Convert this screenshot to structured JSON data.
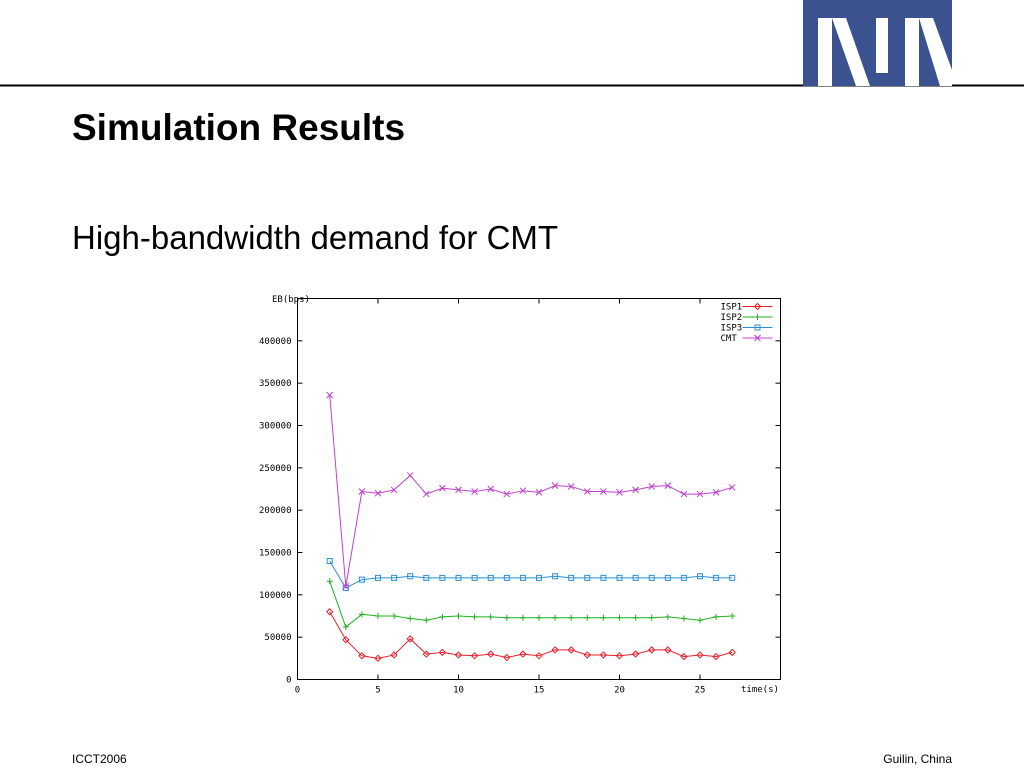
{
  "slide": {
    "title": "Simulation Results",
    "subtitle": "High-bandwidth demand for CMT",
    "footer_left": "ICCT2006",
    "footer_right": "Guilin, China"
  },
  "chart_data": {
    "type": "line",
    "x_label": "time(s)",
    "y_label": "EB(bps)",
    "x": [
      2,
      3,
      4,
      5,
      6,
      7,
      8,
      9,
      10,
      11,
      12,
      13,
      14,
      15,
      16,
      17,
      18,
      19,
      20,
      21,
      22,
      23,
      24,
      25,
      26,
      27
    ],
    "xlim": [
      0,
      30
    ],
    "xticks": [
      0,
      5,
      10,
      15,
      20,
      25
    ],
    "ylim": [
      0,
      450000
    ],
    "yticks": [
      0,
      50000,
      100000,
      150000,
      200000,
      250000,
      300000,
      350000,
      400000
    ],
    "grid": false,
    "legend": "top-right",
    "series": [
      {
        "name": "ISP1",
        "color": "#e8202a",
        "marker": "diamond",
        "values": [
          80000,
          47000,
          28000,
          25000,
          29000,
          48000,
          30000,
          32000,
          29000,
          28000,
          30000,
          26000,
          30000,
          28000,
          35000,
          35000,
          29000,
          29000,
          28000,
          30000,
          35000,
          35000,
          27000,
          29000,
          27000,
          32000
        ]
      },
      {
        "name": "ISP2",
        "color": "#22b022",
        "marker": "plus",
        "values": [
          116000,
          62000,
          77000,
          75000,
          75000,
          72000,
          70000,
          74000,
          75000,
          74000,
          74000,
          73000,
          73000,
          73000,
          73000,
          73000,
          73000,
          73000,
          73000,
          73000,
          73000,
          74000,
          72000,
          70000,
          74000,
          75000
        ]
      },
      {
        "name": "ISP3",
        "color": "#2a8fd8",
        "marker": "square",
        "values": [
          140000,
          108000,
          118000,
          120000,
          120000,
          122000,
          120000,
          120000,
          120000,
          120000,
          120000,
          120000,
          120000,
          120000,
          122000,
          120000,
          120000,
          120000,
          120000,
          120000,
          120000,
          120000,
          120000,
          122000,
          120000,
          120000
        ]
      },
      {
        "name": "CMT",
        "color": "#c040d0",
        "marker": "cross",
        "values": [
          336000,
          110000,
          222000,
          220000,
          224000,
          241000,
          219000,
          226000,
          224000,
          222000,
          225000,
          219000,
          223000,
          221000,
          229000,
          228000,
          222000,
          222000,
          221000,
          224000,
          228000,
          229000,
          219000,
          219000,
          221000,
          227000
        ]
      }
    ]
  }
}
